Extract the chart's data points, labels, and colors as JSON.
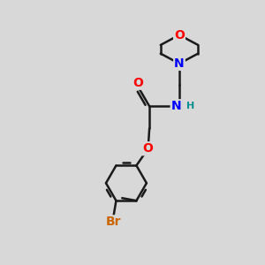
{
  "bg_color": "#d8d8d8",
  "bond_color": "#1a1a1a",
  "bond_width": 1.8,
  "atom_colors": {
    "O": "#ff0000",
    "N": "#0000ff",
    "Br": "#cc6600",
    "H": "#009090",
    "C": "#1a1a1a"
  },
  "font_size": 10,
  "figsize": [
    3.0,
    3.0
  ],
  "dpi": 100
}
